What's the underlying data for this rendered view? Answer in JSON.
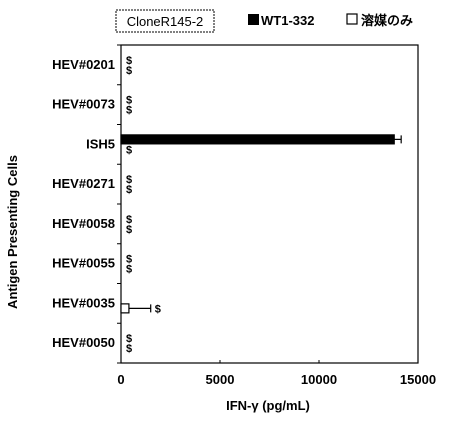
{
  "chart_data": {
    "type": "bar",
    "orientation": "horizontal",
    "panel_label": "CloneR145-2",
    "xlabel": "IFN-γ (pg/mL)",
    "ylabel": "Antigen Presenting Cells",
    "xlim": [
      0,
      15000
    ],
    "xticks": [
      "0",
      "5000",
      "10000",
      "15000"
    ],
    "categories": [
      "HEV#0201",
      "HEV#0073",
      "ISH5",
      "HEV#0271",
      "HEV#0058",
      "HEV#0055",
      "HEV#0035",
      "HEV#0050"
    ],
    "legend_position": "top",
    "series": [
      {
        "name": "WT1-332",
        "color": "#000000",
        "fill": "solid",
        "values": [
          0,
          0,
          13800,
          0,
          0,
          0,
          0,
          0
        ],
        "errors": [
          0,
          0,
          350,
          0,
          0,
          0,
          0,
          0
        ],
        "markers": [
          "$",
          "$",
          "",
          "$",
          "$",
          "$",
          "",
          "$"
        ]
      },
      {
        "name": "溶媒のみ",
        "color": "#ffffff",
        "fill": "hollow",
        "values": [
          0,
          0,
          0,
          0,
          0,
          0,
          400,
          0
        ],
        "errors": [
          0,
          0,
          0,
          0,
          0,
          0,
          1100,
          0
        ],
        "markers": [
          "$",
          "$",
          "$",
          "$",
          "$",
          "$",
          "$",
          "$"
        ]
      }
    ],
    "grid": false
  }
}
